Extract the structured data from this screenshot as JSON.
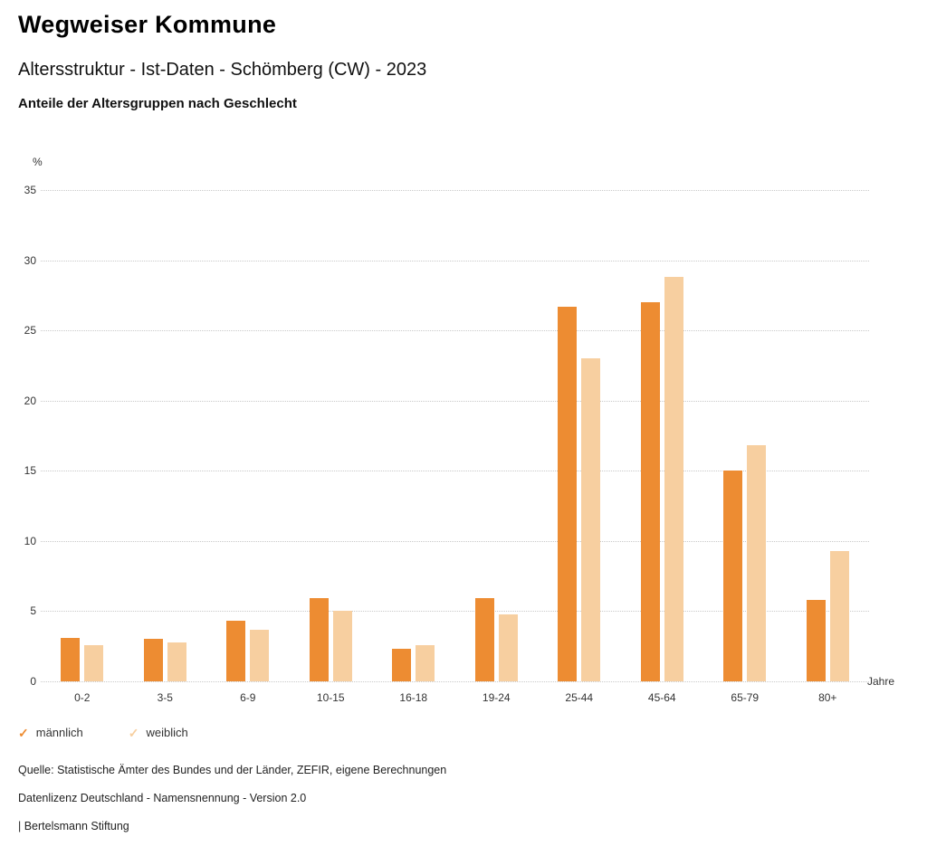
{
  "header": {
    "title": "Wegweiser Kommune",
    "subtitle": "Altersstruktur - Ist-Daten - Schömberg (CW) - 2023",
    "description": "Anteile der Altersgruppen nach Geschlecht"
  },
  "chart_data": {
    "type": "bar",
    "categories": [
      "0-2",
      "3-5",
      "6-9",
      "10-15",
      "16-18",
      "19-24",
      "25-44",
      "45-64",
      "65-79",
      "80+"
    ],
    "series": [
      {
        "name": "männlich",
        "color": "#ED8C32",
        "values": [
          3.1,
          3.0,
          4.3,
          5.9,
          2.3,
          5.9,
          26.7,
          27.0,
          15.0,
          5.8
        ]
      },
      {
        "name": "weiblich",
        "color": "#F7CFA0",
        "values": [
          2.6,
          2.75,
          3.7,
          5.0,
          2.6,
          4.75,
          23.0,
          28.8,
          16.8,
          9.3
        ]
      }
    ],
    "title": "Anteile der Altersgruppen nach Geschlecht",
    "xlabel": "Jahre",
    "ylabel": "%",
    "ylim": [
      0,
      35
    ],
    "yticks": [
      0,
      5,
      10,
      15,
      20,
      25,
      30,
      35
    ],
    "grid": true,
    "legend_position": "bottom"
  },
  "legend": {
    "items": [
      {
        "label": "männlich",
        "color": "#ED8C32",
        "icon": "check-icon"
      },
      {
        "label": "weiblich",
        "color": "#F7CFA0",
        "icon": "check-icon"
      }
    ]
  },
  "footer": {
    "source": "Quelle: Statistische Ämter des Bundes und der Länder, ZEFIR, eigene Berechnungen",
    "license": "Datenlizenz Deutschland - Namensnennung - Version 2.0",
    "attribution": "| Bertelsmann Stiftung"
  }
}
